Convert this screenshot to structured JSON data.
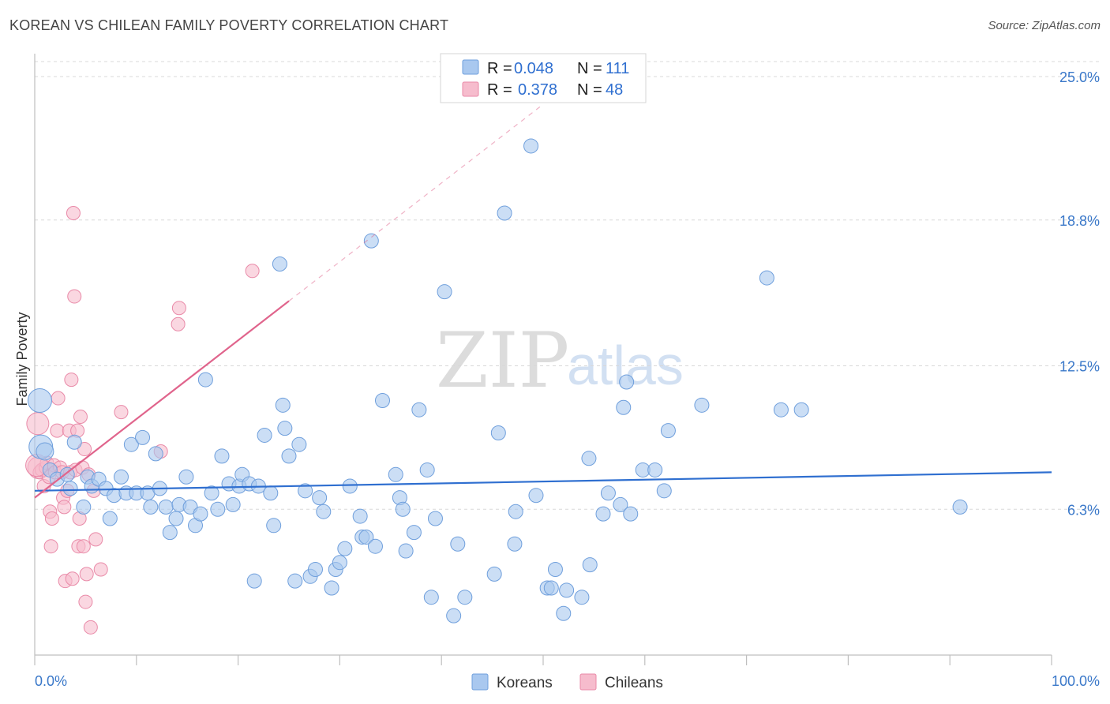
{
  "header": {
    "title": "KOREAN VS CHILEAN FAMILY POVERTY CORRELATION CHART",
    "source": "Source: ZipAtlas.com"
  },
  "legend": {
    "rows": [
      {
        "r_label": "R =",
        "r_value": "0.048",
        "n_label": "N =",
        "n_value": "111"
      },
      {
        "r_label": "R =",
        "r_value": "0.378",
        "n_label": "N =",
        "n_value": "48"
      }
    ]
  },
  "bottom_legend": [
    "Koreans",
    "Chileans"
  ],
  "watermark": {
    "zip": "ZIP",
    "atlas": "atlas"
  },
  "colors": {
    "koreans_fill": "#a9c8ef",
    "koreans_stroke": "#6f9fdc",
    "koreans_line": "#2f6fd0",
    "chileans_fill": "#f6bccd",
    "chileans_stroke": "#e98aa8",
    "chileans_line": "#e0648c",
    "tick_label": "#3a78c9",
    "grid": "#d8d8d8"
  },
  "chart_data": {
    "type": "scatter",
    "xlabel": "",
    "ylabel": "Family Poverty",
    "xlim": [
      0,
      100
    ],
    "ylim": [
      0,
      25
    ],
    "x_ticks": [
      "0.0%",
      "100.0%"
    ],
    "y_ticks": [
      {
        "value": 6.3,
        "label": "6.3%"
      },
      {
        "value": 12.5,
        "label": "12.5%"
      },
      {
        "value": 18.8,
        "label": "18.8%"
      },
      {
        "value": 25.0,
        "label": "25.0%"
      }
    ],
    "grid": "horizontal dashed",
    "series": [
      {
        "name": "Koreans",
        "stats": {
          "R": 0.048,
          "N": 111
        },
        "trend": {
          "x0": 0,
          "y0": 7.1,
          "x1": 100,
          "y1": 7.9
        },
        "points": [
          [
            0.5,
            11.0
          ],
          [
            0.6,
            9.0
          ],
          [
            1.0,
            8.8
          ],
          [
            1.5,
            8.0
          ],
          [
            2.2,
            7.6
          ],
          [
            3.2,
            7.8
          ],
          [
            3.5,
            7.2
          ],
          [
            3.9,
            9.2
          ],
          [
            4.8,
            6.4
          ],
          [
            5.2,
            7.7
          ],
          [
            5.6,
            7.3
          ],
          [
            6.3,
            7.6
          ],
          [
            7.0,
            7.2
          ],
          [
            7.4,
            5.9
          ],
          [
            7.8,
            6.9
          ],
          [
            8.5,
            7.7
          ],
          [
            9.0,
            7.0
          ],
          [
            9.5,
            9.1
          ],
          [
            10.0,
            7.0
          ],
          [
            10.6,
            9.4
          ],
          [
            11.1,
            7.0
          ],
          [
            11.4,
            6.4
          ],
          [
            11.9,
            8.7
          ],
          [
            12.3,
            7.2
          ],
          [
            12.9,
            6.4
          ],
          [
            13.3,
            5.3
          ],
          [
            13.9,
            5.9
          ],
          [
            14.2,
            6.5
          ],
          [
            14.9,
            7.7
          ],
          [
            15.3,
            6.4
          ],
          [
            15.8,
            5.6
          ],
          [
            16.3,
            6.1
          ],
          [
            16.8,
            11.9
          ],
          [
            17.4,
            7.0
          ],
          [
            18.0,
            6.3
          ],
          [
            18.4,
            8.6
          ],
          [
            19.1,
            7.4
          ],
          [
            19.5,
            6.5
          ],
          [
            20.1,
            7.3
          ],
          [
            20.4,
            7.8
          ],
          [
            21.1,
            7.4
          ],
          [
            21.6,
            3.2
          ],
          [
            22.0,
            7.3
          ],
          [
            22.6,
            9.5
          ],
          [
            23.2,
            7.0
          ],
          [
            23.5,
            5.6
          ],
          [
            24.1,
            16.9
          ],
          [
            24.4,
            10.8
          ],
          [
            25.0,
            8.6
          ],
          [
            25.6,
            3.2
          ],
          [
            26.0,
            9.1
          ],
          [
            26.6,
            7.1
          ],
          [
            27.1,
            3.4
          ],
          [
            27.6,
            3.7
          ],
          [
            28.0,
            6.8
          ],
          [
            28.4,
            6.2
          ],
          [
            29.2,
            2.9
          ],
          [
            29.6,
            3.7
          ],
          [
            30.0,
            4.0
          ],
          [
            30.5,
            4.6
          ],
          [
            31.0,
            7.3
          ],
          [
            32.0,
            6.0
          ],
          [
            32.2,
            5.1
          ],
          [
            32.6,
            5.1
          ],
          [
            33.1,
            17.9
          ],
          [
            33.5,
            4.7
          ],
          [
            34.2,
            11.0
          ],
          [
            35.5,
            7.8
          ],
          [
            35.9,
            6.8
          ],
          [
            36.2,
            6.3
          ],
          [
            36.5,
            4.5
          ],
          [
            37.3,
            5.3
          ],
          [
            37.8,
            10.6
          ],
          [
            38.6,
            8.0
          ],
          [
            39.0,
            2.5
          ],
          [
            39.4,
            5.9
          ],
          [
            40.3,
            15.7
          ],
          [
            41.2,
            1.7
          ],
          [
            41.6,
            4.8
          ],
          [
            42.3,
            2.5
          ],
          [
            45.2,
            3.5
          ],
          [
            45.6,
            9.6
          ],
          [
            46.2,
            19.1
          ],
          [
            47.2,
            4.8
          ],
          [
            47.3,
            6.2
          ],
          [
            48.8,
            22.0
          ],
          [
            49.3,
            6.9
          ],
          [
            50.4,
            2.9
          ],
          [
            50.8,
            2.9
          ],
          [
            51.2,
            3.7
          ],
          [
            52.0,
            1.8
          ],
          [
            52.3,
            2.8
          ],
          [
            53.8,
            2.5
          ],
          [
            54.5,
            8.5
          ],
          [
            54.6,
            3.9
          ],
          [
            55.9,
            6.1
          ],
          [
            56.4,
            7.0
          ],
          [
            57.6,
            6.5
          ],
          [
            57.9,
            10.7
          ],
          [
            58.2,
            11.8
          ],
          [
            58.6,
            6.1
          ],
          [
            59.8,
            8.0
          ],
          [
            61.0,
            8.0
          ],
          [
            61.9,
            7.1
          ],
          [
            62.3,
            9.7
          ],
          [
            65.6,
            10.8
          ],
          [
            72.0,
            16.3
          ],
          [
            73.4,
            10.6
          ],
          [
            75.4,
            10.6
          ],
          [
            91.0,
            6.4
          ],
          [
            24.6,
            9.8
          ]
        ]
      },
      {
        "name": "Chileans",
        "stats": {
          "R": 0.378,
          "N": 48
        },
        "trend": {
          "x0": 0,
          "y0": 6.8,
          "x1": 25,
          "y1": 15.3
        },
        "trend_extension": {
          "x0": 25,
          "y0": 15.3,
          "x1": 50,
          "y1": 23.8
        },
        "points": [
          [
            0.3,
            10.0
          ],
          [
            0.4,
            8.1
          ],
          [
            0.5,
            7.9
          ],
          [
            0.7,
            8.0
          ],
          [
            0.9,
            7.3
          ],
          [
            1.1,
            8.1
          ],
          [
            1.2,
            8.3
          ],
          [
            1.4,
            7.7
          ],
          [
            1.5,
            6.2
          ],
          [
            1.6,
            4.7
          ],
          [
            1.7,
            5.9
          ],
          [
            1.9,
            8.2
          ],
          [
            2.0,
            7.9
          ],
          [
            2.2,
            9.7
          ],
          [
            2.3,
            11.1
          ],
          [
            2.5,
            8.1
          ],
          [
            2.7,
            7.9
          ],
          [
            2.8,
            6.8
          ],
          [
            2.9,
            6.4
          ],
          [
            3.0,
            3.2
          ],
          [
            3.2,
            7.1
          ],
          [
            3.4,
            9.7
          ],
          [
            3.5,
            7.9
          ],
          [
            3.6,
            11.9
          ],
          [
            3.7,
            3.3
          ],
          [
            3.8,
            19.1
          ],
          [
            3.9,
            15.5
          ],
          [
            4.0,
            8.0
          ],
          [
            4.2,
            9.7
          ],
          [
            4.3,
            4.7
          ],
          [
            4.4,
            5.9
          ],
          [
            4.5,
            10.3
          ],
          [
            4.7,
            8.1
          ],
          [
            4.8,
            4.7
          ],
          [
            4.9,
            8.9
          ],
          [
            5.0,
            2.3
          ],
          [
            5.1,
            3.5
          ],
          [
            5.3,
            7.8
          ],
          [
            5.5,
            1.2
          ],
          [
            5.8,
            7.1
          ],
          [
            6.0,
            5.0
          ],
          [
            6.5,
            3.7
          ],
          [
            8.5,
            10.5
          ],
          [
            12.4,
            8.8
          ],
          [
            14.2,
            15.0
          ],
          [
            14.1,
            14.3
          ],
          [
            21.4,
            16.6
          ],
          [
            0.2,
            8.2
          ]
        ]
      }
    ]
  }
}
